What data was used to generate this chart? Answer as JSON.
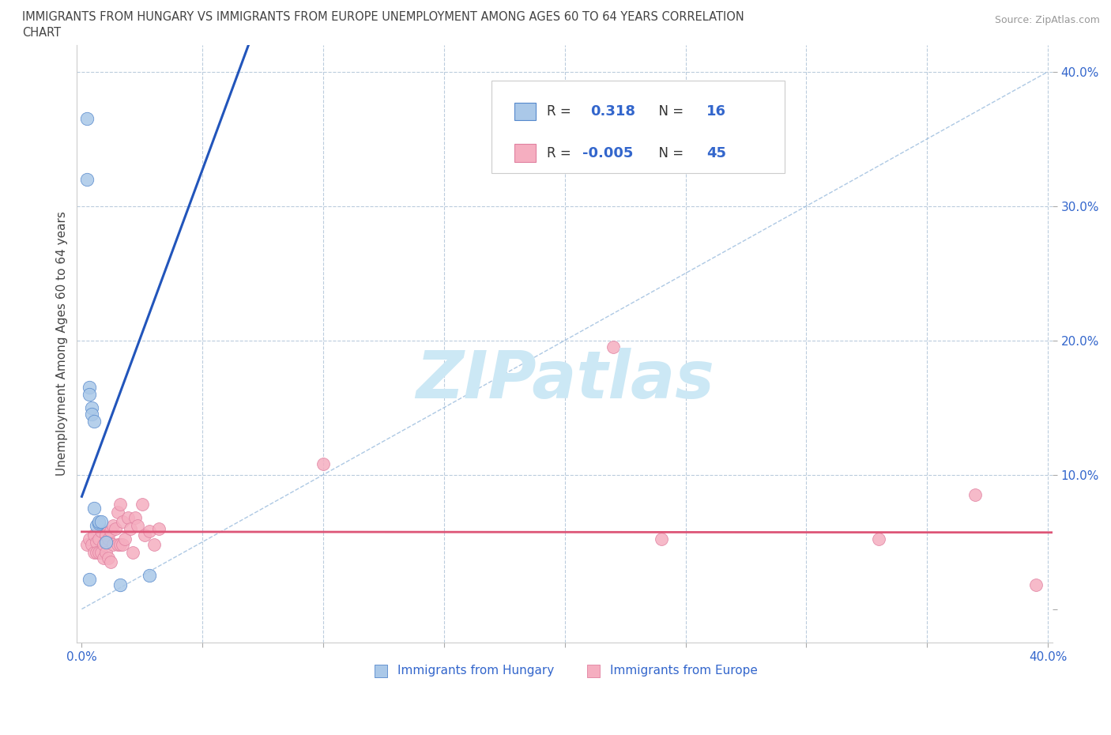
{
  "title_line1": "IMMIGRANTS FROM HUNGARY VS IMMIGRANTS FROM EUROPE UNEMPLOYMENT AMONG AGES 60 TO 64 YEARS CORRELATION",
  "title_line2": "CHART",
  "source": "Source: ZipAtlas.com",
  "ylabel": "Unemployment Among Ages 60 to 64 years",
  "xlim": [
    -0.002,
    0.402
  ],
  "ylim": [
    -0.025,
    0.42
  ],
  "blue_scatter_x": [
    0.002,
    0.002,
    0.003,
    0.003,
    0.004,
    0.004,
    0.005,
    0.005,
    0.006,
    0.007,
    0.007,
    0.008,
    0.01,
    0.016,
    0.003,
    0.028
  ],
  "blue_scatter_y": [
    0.365,
    0.32,
    0.165,
    0.16,
    0.15,
    0.145,
    0.14,
    0.075,
    0.062,
    0.064,
    0.065,
    0.065,
    0.05,
    0.018,
    0.022,
    0.025
  ],
  "pink_scatter_x": [
    0.002,
    0.003,
    0.004,
    0.005,
    0.005,
    0.006,
    0.006,
    0.007,
    0.007,
    0.008,
    0.008,
    0.009,
    0.009,
    0.01,
    0.01,
    0.011,
    0.011,
    0.012,
    0.012,
    0.013,
    0.013,
    0.014,
    0.015,
    0.015,
    0.016,
    0.016,
    0.017,
    0.017,
    0.018,
    0.019,
    0.02,
    0.021,
    0.022,
    0.023,
    0.025,
    0.026,
    0.028,
    0.03,
    0.032,
    0.1,
    0.22,
    0.24,
    0.33,
    0.37,
    0.395
  ],
  "pink_scatter_y": [
    0.048,
    0.052,
    0.048,
    0.042,
    0.055,
    0.05,
    0.042,
    0.052,
    0.042,
    0.058,
    0.042,
    0.048,
    0.038,
    0.055,
    0.042,
    0.052,
    0.038,
    0.058,
    0.035,
    0.062,
    0.048,
    0.06,
    0.072,
    0.048,
    0.078,
    0.048,
    0.048,
    0.065,
    0.052,
    0.068,
    0.06,
    0.042,
    0.068,
    0.062,
    0.078,
    0.055,
    0.058,
    0.048,
    0.06,
    0.108,
    0.195,
    0.052,
    0.052,
    0.085,
    0.018
  ],
  "blue_color": "#aac8e8",
  "pink_color": "#f5aec0",
  "blue_edge_color": "#5588cc",
  "pink_edge_color": "#e080a0",
  "blue_line_color": "#2255bb",
  "pink_line_color": "#dd5577",
  "R_blue": 0.318,
  "N_blue": 16,
  "R_pink": -0.005,
  "N_pink": 45,
  "legend_blue_label": "Immigrants from Hungary",
  "legend_pink_label": "Immigrants from Europe",
  "watermark_color": "#cce8f5",
  "figsize": [
    14.06,
    9.3
  ],
  "dpi": 100
}
